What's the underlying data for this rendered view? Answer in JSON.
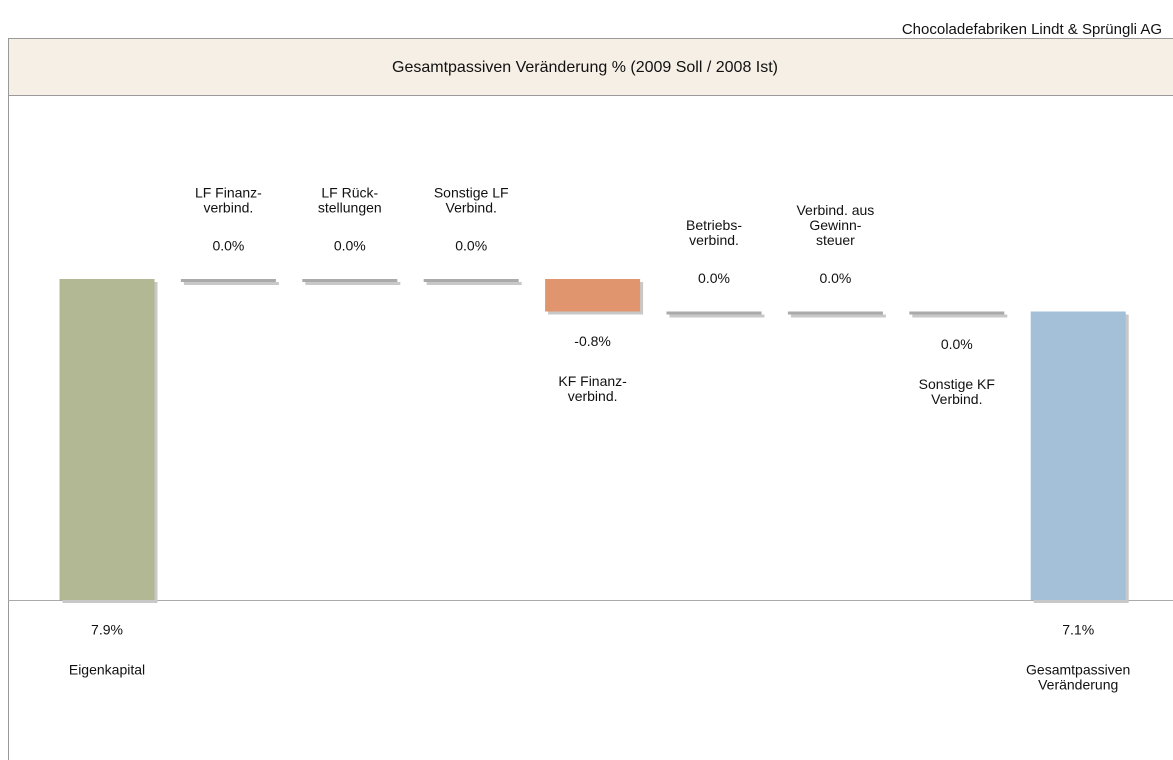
{
  "chart_data": {
    "type": "waterfall",
    "company": "Chocoladefabriken Lindt & Sprüngli AG",
    "title": "Gesamtpassiven Veränderung % (2009 Soll / 2008 Ist)",
    "categories": [
      [
        "Eigenkapital"
      ],
      [
        "LF Finanz-",
        "verbind."
      ],
      [
        "LF Rück-",
        "stellungen"
      ],
      [
        "Sonstige LF",
        "Verbind."
      ],
      [
        "KF Finanz-",
        "verbind."
      ],
      [
        "Betriebs-",
        "verbind."
      ],
      [
        "Verbind. aus",
        "Gewinn-",
        "steuer"
      ],
      [
        "Sonstige KF",
        "Verbind."
      ],
      [
        "Gesamtpassiven",
        "Veränderung"
      ]
    ],
    "values": [
      7.9,
      0.0,
      0.0,
      0.0,
      -0.8,
      0.0,
      0.0,
      0.0,
      7.1
    ],
    "value_labels": [
      "7.9%",
      "0.0%",
      "0.0%",
      "0.0%",
      "-0.8%",
      "0.0%",
      "0.0%",
      "0.0%",
      "7.1%"
    ],
    "totals": [
      true,
      false,
      false,
      false,
      false,
      false,
      false,
      false,
      true
    ],
    "colors": [
      "#b3b894",
      "#aaaaaa",
      "#aaaaaa",
      "#aaaaaa",
      "#e0956e",
      "#aaaaaa",
      "#aaaaaa",
      "#aaaaaa",
      "#a4bfd8"
    ],
    "label_positions": [
      "below",
      "above",
      "above",
      "above",
      "below",
      "above",
      "above",
      "below",
      "below"
    ]
  }
}
